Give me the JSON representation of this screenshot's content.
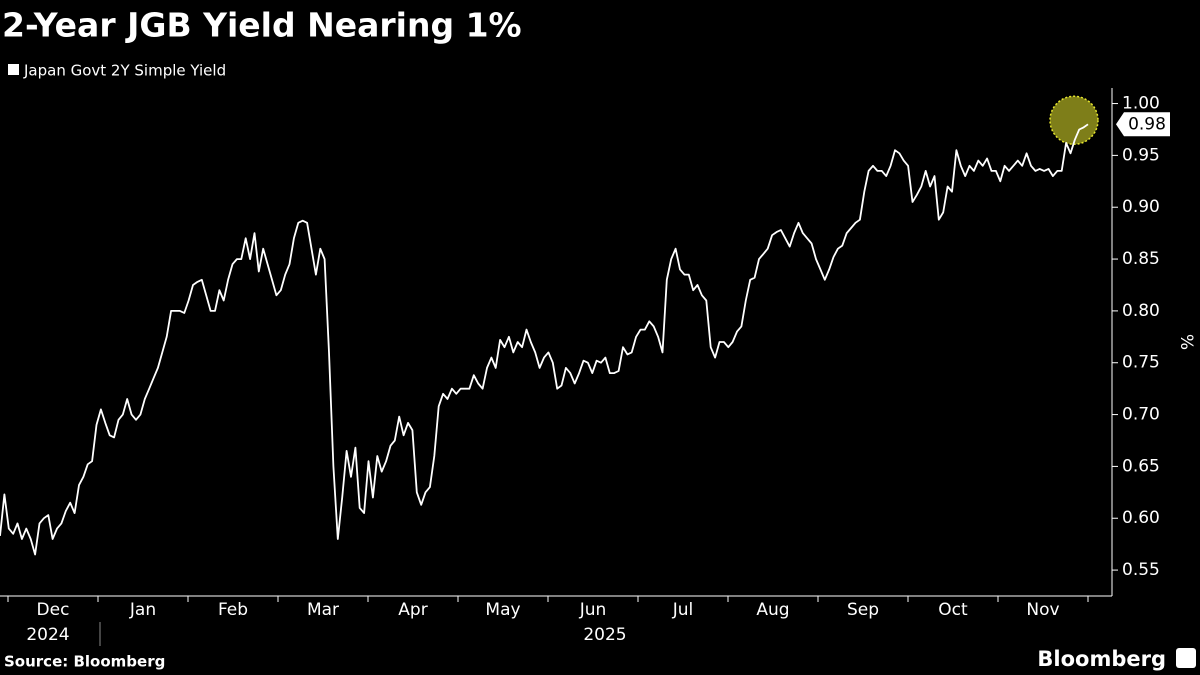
{
  "chart_data": {
    "type": "line",
    "title": "2-Year JGB Yield Nearing 1%",
    "y_axis_label": "%",
    "source": "Source: Bloomberg",
    "brand": "Bloomberg",
    "x_month_labels": [
      "Dec",
      "Jan",
      "Feb",
      "Mar",
      "Apr",
      "May",
      "Jun",
      "Jul",
      "Aug",
      "Sep",
      "Oct",
      "Nov"
    ],
    "x_year_labels": [
      "2024",
      "2025"
    ],
    "ylim": [
      0.525,
      1.015
    ],
    "yticks": [
      0.55,
      {
        "value": 0.6,
        "label": "0.60"
      },
      0.65,
      {
        "value": 0.7,
        "label": "0.70"
      },
      0.75,
      {
        "value": 0.8,
        "label": "0.80"
      },
      0.85,
      {
        "value": 0.9,
        "label": "0.90"
      },
      0.95,
      {
        "value": 1.0,
        "label": "1.00"
      }
    ],
    "grid": false,
    "legend": "top-left",
    "series": [
      {
        "name": "Japan Govt 2Y Simple Yield",
        "color": "#ffffff",
        "highlight_color": "#e6e62e",
        "values": [
          0.583,
          0.623,
          0.59,
          0.585,
          0.595,
          0.58,
          0.59,
          0.58,
          0.565,
          0.595,
          0.6,
          0.603,
          0.58,
          0.59,
          0.595,
          0.607,
          0.615,
          0.605,
          0.632,
          0.64,
          0.652,
          0.655,
          0.69,
          0.705,
          0.692,
          0.68,
          0.678,
          0.695,
          0.7,
          0.715,
          0.7,
          0.695,
          0.7,
          0.715,
          0.725,
          0.735,
          0.745,
          0.76,
          0.775,
          0.8,
          0.8,
          0.8,
          0.798,
          0.81,
          0.825,
          0.828,
          0.83,
          0.815,
          0.8,
          0.8,
          0.82,
          0.81,
          0.83,
          0.845,
          0.85,
          0.85,
          0.87,
          0.85,
          0.875,
          0.838,
          0.86,
          0.845,
          0.83,
          0.815,
          0.82,
          0.835,
          0.845,
          0.87,
          0.885,
          0.887,
          0.885,
          0.86,
          0.835,
          0.86,
          0.85,
          0.76,
          0.65,
          0.58,
          0.62,
          0.665,
          0.64,
          0.668,
          0.61,
          0.605,
          0.655,
          0.62,
          0.66,
          0.645,
          0.655,
          0.67,
          0.675,
          0.698,
          0.68,
          0.692,
          0.685,
          0.625,
          0.613,
          0.625,
          0.63,
          0.66,
          0.708,
          0.72,
          0.715,
          0.725,
          0.72,
          0.725,
          0.725,
          0.725,
          0.738,
          0.73,
          0.725,
          0.745,
          0.755,
          0.745,
          0.772,
          0.765,
          0.775,
          0.76,
          0.77,
          0.765,
          0.782,
          0.77,
          0.76,
          0.745,
          0.755,
          0.76,
          0.75,
          0.725,
          0.728,
          0.745,
          0.74,
          0.73,
          0.74,
          0.752,
          0.75,
          0.74,
          0.752,
          0.75,
          0.755,
          0.74,
          0.74,
          0.742,
          0.765,
          0.758,
          0.76,
          0.775,
          0.782,
          0.782,
          0.79,
          0.785,
          0.775,
          0.76,
          0.83,
          0.85,
          0.86,
          0.84,
          0.835,
          0.835,
          0.82,
          0.825,
          0.815,
          0.81,
          0.765,
          0.755,
          0.77,
          0.77,
          0.765,
          0.77,
          0.78,
          0.785,
          0.81,
          0.83,
          0.832,
          0.85,
          0.855,
          0.86,
          0.873,
          0.876,
          0.878,
          0.87,
          0.862,
          0.875,
          0.885,
          0.875,
          0.87,
          0.865,
          0.85,
          0.84,
          0.83,
          0.84,
          0.852,
          0.86,
          0.863,
          0.875,
          0.88,
          0.885,
          0.888,
          0.915,
          0.935,
          0.94,
          0.935,
          0.935,
          0.93,
          0.94,
          0.955,
          0.952,
          0.945,
          0.94,
          0.905,
          0.912,
          0.92,
          0.935,
          0.92,
          0.93,
          0.888,
          0.895,
          0.92,
          0.915,
          0.955,
          0.94,
          0.93,
          0.94,
          0.935,
          0.945,
          0.94,
          0.947,
          0.935,
          0.935,
          0.925,
          0.94,
          0.935,
          0.94,
          0.945,
          0.94,
          0.952,
          0.94,
          0.935,
          0.937,
          0.935,
          0.937,
          0.93,
          0.935,
          0.935,
          0.962,
          0.952,
          0.965,
          0.975,
          0.977,
          0.98
        ]
      }
    ]
  }
}
